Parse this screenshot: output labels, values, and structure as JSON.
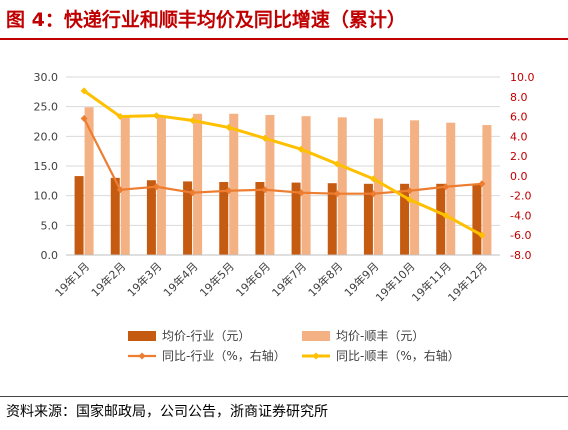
{
  "figure": {
    "title": "图 4：快递行业和顺丰均价及同比增速（累计）",
    "source": "资料来源：国家邮政局，公司公告，浙商证券研究所"
  },
  "colors": {
    "title": "#c00000",
    "industry_price": "#c55a11",
    "sf_price": "#f4b183",
    "industry_yoy": "#ed7d31",
    "sf_yoy": "#ffc000",
    "right_axis_text": "#c00000"
  },
  "chart_data": {
    "type": "bar",
    "categories": [
      "19年1月",
      "19年2月",
      "19年3月",
      "19年4月",
      "19年5月",
      "19年6月",
      "19年7月",
      "19年8月",
      "19年9月",
      "19年10月",
      "19年11月",
      "19年12月"
    ],
    "series": [
      {
        "name": "均价-行业（元）",
        "type": "bar",
        "axis": "left",
        "values": [
          13.3,
          13.0,
          12.6,
          12.4,
          12.3,
          12.3,
          12.2,
          12.1,
          12.0,
          12.0,
          12.0,
          11.9
        ]
      },
      {
        "name": "均价-顺丰（元）",
        "type": "bar",
        "axis": "left",
        "values": [
          24.9,
          23.2,
          23.4,
          23.8,
          23.8,
          23.6,
          23.4,
          23.2,
          23.0,
          22.7,
          22.3,
          21.9
        ]
      },
      {
        "name": "同比-行业（%，右轴）",
        "type": "line",
        "axis": "right",
        "values": [
          5.8,
          -1.4,
          -1.1,
          -1.7,
          -1.5,
          -1.4,
          -1.7,
          -1.8,
          -1.8,
          -1.5,
          -1.1,
          -0.8
        ]
      },
      {
        "name": "同比-顺丰（%，右轴）",
        "type": "line",
        "axis": "right",
        "values": [
          8.6,
          6.0,
          6.1,
          5.6,
          4.9,
          3.8,
          2.7,
          1.2,
          -0.3,
          -2.4,
          -4.0,
          -6.0
        ]
      }
    ],
    "left_axis": {
      "range": [
        0,
        30
      ],
      "ticks": [
        "0.0",
        "5.0",
        "10.0",
        "15.0",
        "20.0",
        "25.0",
        "30.0"
      ]
    },
    "right_axis": {
      "range": [
        -8,
        10
      ],
      "ticks": [
        "-8.0",
        "-6.0",
        "-4.0",
        "-2.0",
        "0.0",
        "2.0",
        "4.0",
        "6.0",
        "8.0",
        "10.0"
      ]
    },
    "grid": true,
    "legend_position": "bottom"
  }
}
